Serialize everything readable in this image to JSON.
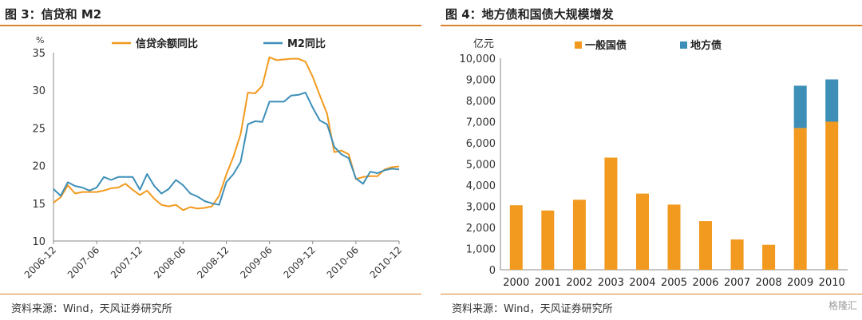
{
  "left_panel": {
    "title": "图 3：信贷和 M2",
    "source": "资料来源：Wind，天风证券研究所"
  },
  "right_panel": {
    "title": "图 4：地方债和国债大规模增发",
    "source": "资料来源：Wind，天风证券研究所"
  },
  "watermark": "格隆汇",
  "colors": {
    "orange": "#f29a1f",
    "blue": "#3d8fb8",
    "rule": "#d9832a",
    "axis": "#888888"
  },
  "chart_data": [
    {
      "type": "line",
      "ylabel": "%",
      "ylim": [
        10,
        35
      ],
      "yticks": [
        10,
        15,
        20,
        25,
        30,
        35
      ],
      "xtick_labels": [
        "2006-12",
        "2007-06",
        "2007-12",
        "2008-06",
        "2008-12",
        "2009-06",
        "2009-12",
        "2010-06",
        "2010-12"
      ],
      "x_count": 49,
      "legend_position": "top",
      "series": [
        {
          "name": "信贷余额同比",
          "color": "#f29a1f",
          "values": [
            15.1,
            15.8,
            17.4,
            16.3,
            16.5,
            16.5,
            16.5,
            16.7,
            17.0,
            17.1,
            17.6,
            16.8,
            16.1,
            16.7,
            15.6,
            14.8,
            14.6,
            14.8,
            14.1,
            14.5,
            14.3,
            14.4,
            14.6,
            16.0,
            18.8,
            21.2,
            24.2,
            29.7,
            29.6,
            30.6,
            34.4,
            34.0,
            34.1,
            34.2,
            34.2,
            33.8,
            31.8,
            29.3,
            26.9,
            21.8,
            22.0,
            21.5,
            18.2,
            18.5,
            18.6,
            18.6,
            19.5,
            19.8,
            19.9
          ]
        },
        {
          "name": "M2同比",
          "color": "#3d8fb8",
          "values": [
            16.9,
            16.0,
            17.8,
            17.3,
            17.1,
            16.7,
            17.1,
            18.5,
            18.1,
            18.5,
            18.5,
            18.5,
            16.8,
            18.9,
            17.3,
            16.3,
            16.9,
            18.1,
            17.4,
            16.3,
            15.9,
            15.3,
            15.0,
            14.8,
            17.8,
            18.9,
            20.5,
            25.5,
            25.9,
            25.8,
            28.5,
            28.5,
            28.5,
            29.3,
            29.4,
            29.7,
            27.7,
            26.0,
            25.5,
            22.5,
            21.5,
            21.0,
            18.3,
            17.6,
            19.2,
            19.0,
            19.4,
            19.6,
            19.5
          ]
        }
      ]
    },
    {
      "type": "bar",
      "stacked": true,
      "ylabel": "亿元",
      "ylim": [
        0,
        10000
      ],
      "yticks": [
        "0",
        "1,000",
        "2,000",
        "3,000",
        "4,000",
        "5,000",
        "6,000",
        "7,000",
        "8,000",
        "9,000",
        "10,000"
      ],
      "categories": [
        "2000",
        "2001",
        "2002",
        "2003",
        "2004",
        "2005",
        "2006",
        "2007",
        "2008",
        "2009",
        "2010"
      ],
      "legend_position": "top",
      "series": [
        {
          "name": "一般国债",
          "color": "#f29a1f",
          "values": [
            3050,
            2800,
            3310,
            5300,
            3600,
            3080,
            2300,
            1430,
            1180,
            6700,
            7000
          ]
        },
        {
          "name": "地方债",
          "color": "#3d8fb8",
          "values": [
            0,
            0,
            0,
            0,
            0,
            0,
            0,
            0,
            0,
            2000,
            2000
          ]
        }
      ]
    }
  ]
}
